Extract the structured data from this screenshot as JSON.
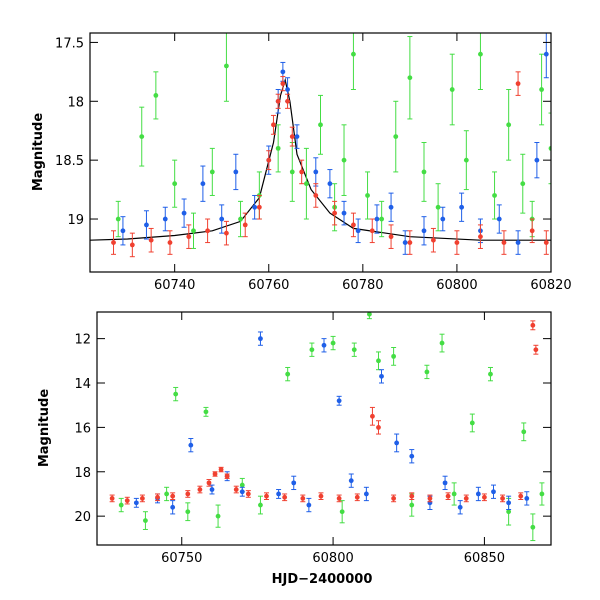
{
  "colors": {
    "green": "#44dd44",
    "blue": "#1f5fe8",
    "red": "#f04030",
    "model": "#000000"
  },
  "chart_data": [
    {
      "type": "scatter",
      "panel": "top",
      "xlabel": "",
      "ylabel": "Magnitude",
      "xlim": [
        60722,
        60820
      ],
      "ylim": [
        19.45,
        17.42
      ],
      "y_inverted": true,
      "xticks": [
        60740,
        60760,
        60780,
        60800,
        60820
      ],
      "yticks": [
        17.5,
        18,
        18.5,
        19
      ],
      "ytick_labels": [
        "17.5",
        "18",
        "18.5",
        "19"
      ],
      "model_curve": {
        "x": [
          60722,
          60730,
          60740,
          60748,
          60754,
          60758,
          60761,
          60762.5,
          60763.5,
          60764.5,
          60766,
          60769,
          60773,
          60778,
          60790,
          60805,
          60820
        ],
        "y": [
          19.18,
          19.17,
          19.14,
          19.1,
          19.02,
          18.82,
          18.35,
          17.95,
          17.82,
          18.0,
          18.45,
          18.75,
          18.95,
          19.08,
          19.15,
          19.18,
          19.18
        ]
      },
      "series": [
        {
          "color": "green",
          "x": [
            60728,
            60733,
            60736,
            60740,
            60744,
            60748,
            60751,
            60754,
            60758,
            60762,
            60765,
            60768,
            60771,
            60774,
            60776,
            60778,
            60781,
            60784,
            60787,
            60790,
            60793,
            60796,
            60799,
            60802,
            60805,
            60808,
            60811,
            60814,
            60816,
            60818,
            60820
          ],
          "y": [
            19.0,
            18.3,
            17.95,
            18.7,
            19.1,
            18.6,
            17.7,
            19.0,
            18.8,
            18.4,
            18.6,
            18.7,
            18.2,
            18.9,
            18.5,
            17.6,
            18.8,
            19.0,
            18.3,
            17.8,
            18.6,
            18.9,
            17.9,
            18.5,
            17.6,
            18.8,
            18.2,
            18.7,
            19.0,
            17.9,
            18.4
          ],
          "err": [
            0.15,
            0.25,
            0.2,
            0.2,
            0.15,
            0.2,
            0.3,
            0.15,
            0.2,
            0.2,
            0.25,
            0.3,
            0.25,
            0.2,
            0.3,
            0.3,
            0.2,
            0.15,
            0.3,
            0.35,
            0.25,
            0.2,
            0.3,
            0.25,
            0.3,
            0.2,
            0.3,
            0.25,
            0.15,
            0.3,
            0.3
          ]
        },
        {
          "color": "blue",
          "x": [
            60729,
            60734,
            60738,
            60742,
            60746,
            60750,
            60753,
            60757,
            60760,
            60762,
            60763,
            60764,
            60766,
            60770,
            60773,
            60776,
            60779,
            60783,
            60786,
            60789,
            60793,
            60797,
            60801,
            60805,
            60809,
            60813,
            60817,
            60819
          ],
          "y": [
            19.1,
            19.05,
            19.0,
            18.95,
            18.7,
            19.0,
            18.6,
            18.9,
            18.5,
            18.0,
            17.75,
            17.9,
            18.3,
            18.6,
            18.7,
            18.95,
            19.1,
            19.0,
            18.9,
            19.2,
            19.1,
            19.0,
            18.9,
            19.1,
            19.0,
            19.2,
            18.5,
            17.6
          ],
          "err": [
            0.12,
            0.12,
            0.1,
            0.12,
            0.15,
            0.12,
            0.15,
            0.1,
            0.12,
            0.1,
            0.08,
            0.1,
            0.1,
            0.12,
            0.12,
            0.1,
            0.1,
            0.12,
            0.12,
            0.1,
            0.12,
            0.1,
            0.12,
            0.1,
            0.12,
            0.1,
            0.15,
            0.2
          ]
        },
        {
          "color": "red",
          "x": [
            60727,
            60731,
            60735,
            60739,
            60743,
            60747,
            60751,
            60755,
            60758,
            60760,
            60761,
            60762,
            60763,
            60764,
            60765,
            60767,
            60770,
            60774,
            60778,
            60782,
            60786,
            60790,
            60795,
            60800,
            60805,
            60810,
            60813,
            60816,
            60819
          ],
          "y": [
            19.2,
            19.22,
            19.18,
            19.2,
            19.15,
            19.1,
            19.12,
            19.05,
            18.9,
            18.5,
            18.2,
            18.0,
            17.85,
            18.0,
            18.3,
            18.6,
            18.8,
            18.95,
            19.05,
            19.1,
            19.15,
            19.2,
            19.18,
            19.2,
            19.15,
            19.2,
            17.85,
            19.1,
            19.2
          ],
          "err": [
            0.1,
            0.1,
            0.1,
            0.1,
            0.1,
            0.1,
            0.1,
            0.1,
            0.1,
            0.08,
            0.08,
            0.06,
            0.06,
            0.06,
            0.08,
            0.1,
            0.1,
            0.1,
            0.1,
            0.1,
            0.1,
            0.1,
            0.1,
            0.1,
            0.1,
            0.1,
            0.1,
            0.1,
            0.1
          ]
        }
      ]
    },
    {
      "type": "scatter",
      "panel": "bottom",
      "xlabel": "HJD−2400000",
      "ylabel": "Magnitude",
      "xlim": [
        60722,
        60872
      ],
      "ylim": [
        21.3,
        10.8
      ],
      "y_inverted": true,
      "xticks": [
        60750,
        60800,
        60850
      ],
      "yticks": [
        12,
        14,
        16,
        18,
        20
      ],
      "series": [
        {
          "color": "green",
          "x": [
            60730,
            60738,
            60745,
            60748,
            60752,
            60758,
            60762,
            60770,
            60776,
            60785,
            60793,
            60800,
            60803,
            60807,
            60812,
            60815,
            60820,
            60826,
            60831,
            60836,
            60840,
            60846,
            60852,
            60858,
            60863,
            60866,
            60869
          ],
          "y": [
            19.5,
            20.2,
            19.0,
            14.5,
            19.8,
            15.3,
            20.0,
            18.6,
            19.5,
            13.6,
            12.5,
            12.2,
            19.8,
            12.5,
            10.9,
            13.0,
            12.8,
            19.5,
            13.5,
            12.2,
            19.0,
            15.8,
            13.6,
            19.8,
            16.2,
            20.5,
            19.0
          ],
          "err": [
            0.3,
            0.4,
            0.3,
            0.3,
            0.4,
            0.2,
            0.5,
            0.3,
            0.4,
            0.3,
            0.3,
            0.3,
            0.5,
            0.3,
            0.2,
            0.4,
            0.4,
            0.5,
            0.3,
            0.4,
            0.5,
            0.4,
            0.3,
            0.6,
            0.4,
            0.6,
            0.5
          ]
        },
        {
          "color": "blue",
          "x": [
            60735,
            60742,
            60747,
            60753,
            60760,
            60765,
            60770,
            60776,
            60782,
            60787,
            60792,
            60797,
            60802,
            60806,
            60811,
            60816,
            60821,
            60826,
            60832,
            60837,
            60842,
            60848,
            60853,
            60858,
            60864
          ],
          "y": [
            19.4,
            19.2,
            19.6,
            16.8,
            18.8,
            18.2,
            18.9,
            12.0,
            19.0,
            18.5,
            19.5,
            12.3,
            14.8,
            18.4,
            19.0,
            13.7,
            16.7,
            17.3,
            19.4,
            18.5,
            19.6,
            19.0,
            18.9,
            19.4,
            19.2
          ],
          "err": [
            0.2,
            0.2,
            0.3,
            0.3,
            0.2,
            0.2,
            0.2,
            0.3,
            0.2,
            0.3,
            0.3,
            0.3,
            0.2,
            0.3,
            0.3,
            0.3,
            0.4,
            0.3,
            0.3,
            0.3,
            0.3,
            0.3,
            0.3,
            0.3,
            0.3
          ]
        },
        {
          "color": "red",
          "x": [
            60727,
            60732,
            60737,
            60742,
            60747,
            60752,
            60756,
            60759,
            60761,
            60763,
            60765,
            60768,
            60772,
            60778,
            60784,
            60790,
            60796,
            60802,
            60808,
            60813,
            60815,
            60820,
            60826,
            60832,
            60838,
            60844,
            60850,
            60856,
            60862,
            60866,
            60867
          ],
          "y": [
            19.2,
            19.3,
            19.2,
            19.15,
            19.1,
            19.0,
            18.8,
            18.5,
            18.1,
            17.9,
            18.2,
            18.8,
            19.0,
            19.1,
            19.15,
            19.2,
            19.1,
            19.2,
            19.15,
            15.5,
            16.0,
            19.2,
            19.1,
            19.2,
            19.1,
            19.2,
            19.15,
            19.2,
            19.1,
            11.4,
            12.5
          ],
          "err": [
            0.15,
            0.15,
            0.15,
            0.15,
            0.15,
            0.15,
            0.15,
            0.15,
            0.1,
            0.1,
            0.1,
            0.15,
            0.15,
            0.15,
            0.15,
            0.15,
            0.15,
            0.15,
            0.15,
            0.4,
            0.3,
            0.15,
            0.15,
            0.15,
            0.15,
            0.15,
            0.15,
            0.15,
            0.15,
            0.2,
            0.2
          ]
        }
      ]
    }
  ]
}
